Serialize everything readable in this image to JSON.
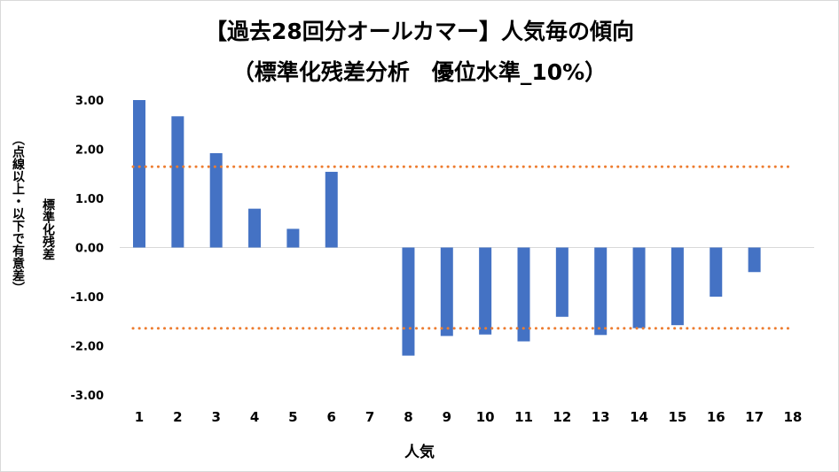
{
  "chart_data": {
    "type": "bar",
    "title": "【過去28回分オールカマー】人気毎の傾向",
    "subtitle": "（標準化残差分析　優位水準_10%）",
    "xlabel": "人気",
    "ylabel": "標準化残差",
    "ylabel_note": "（点線以上・以下で有意差）",
    "categories": [
      "1",
      "2",
      "3",
      "4",
      "5",
      "6",
      "7",
      "8",
      "9",
      "10",
      "11",
      "12",
      "13",
      "14",
      "15",
      "16",
      "17",
      "18"
    ],
    "values": [
      3.0,
      2.67,
      1.92,
      0.79,
      0.38,
      1.54,
      null,
      -2.2,
      -1.8,
      -1.77,
      -1.91,
      -1.41,
      -1.78,
      -1.64,
      -1.58,
      -1.0,
      -0.5,
      null
    ],
    "ylim": [
      -3.0,
      3.0
    ],
    "yticks": [
      "3.00",
      "2.00",
      "1.00",
      "0.00",
      "-1.00",
      "-2.00",
      "-3.00"
    ],
    "threshold_lines": [
      1.645,
      -1.645
    ],
    "grid": false,
    "bar_color": "#4472c4",
    "threshold_color": "#ed7d31",
    "axis_color": "#d9d9d9"
  }
}
